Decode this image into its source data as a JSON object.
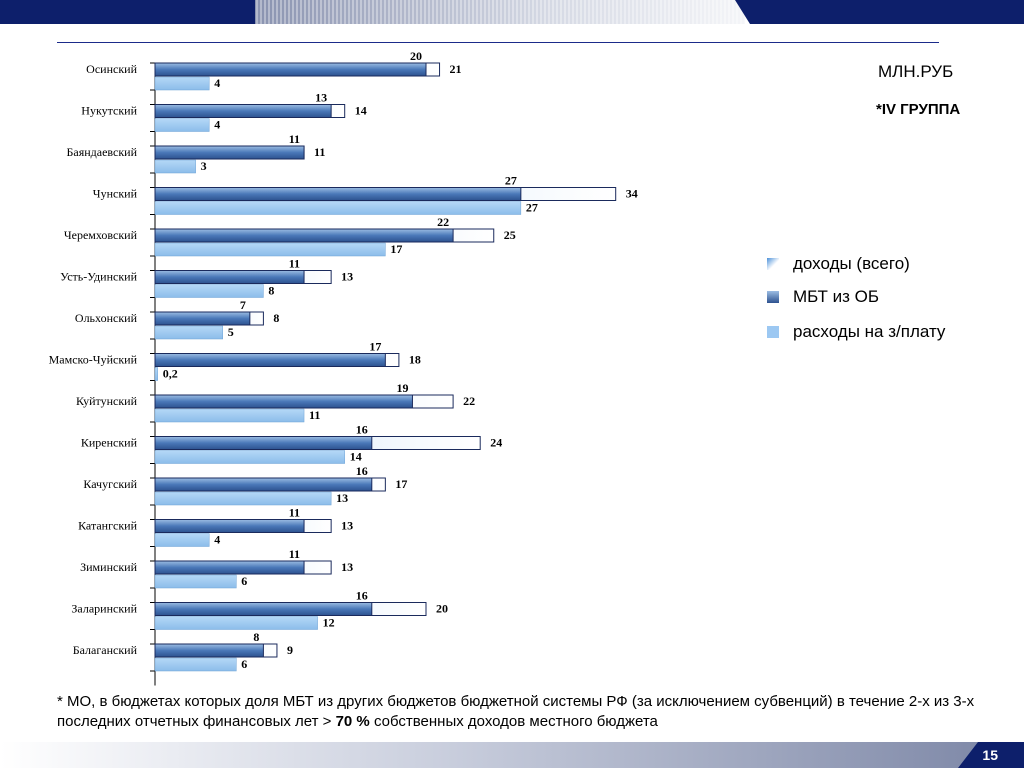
{
  "header": {
    "unit_label": "МЛН.РУБ",
    "group_label": "*IV ГРУППА"
  },
  "legend": [
    {
      "key": "income_total",
      "label": "доходы (всего)"
    },
    {
      "key": "mbt_ob",
      "label": "МБТ из ОБ"
    },
    {
      "key": "salary",
      "label": "расходы на з/плату"
    }
  ],
  "footnote": {
    "before": "* МО, в бюджетах которых доля МБТ из других бюджетов бюджетной системы РФ (за исключением субвенций) в течение 2-х из 3-х последних отчетных финансовых лет > ",
    "bold": "70 %",
    "after": " собственных доходов местного бюджета"
  },
  "page_number": "15",
  "colors": {
    "accent_navy": "#0d1f6b",
    "income_fill": "#ffffff",
    "mbt_fill": "#4a78b8",
    "salary_fill": "#9cc8f2"
  },
  "chart_data": {
    "type": "bar",
    "orientation": "horizontal",
    "categories": [
      "Осинский",
      "Нукутский",
      "Баяндаевский",
      "Чунский",
      "Черемховский",
      "Усть-Удинский",
      "Ольхонский",
      "Мамско-Чуйский",
      "Куйтунский",
      "Киренский",
      "Качугский",
      "Катангский",
      "Зиминский",
      "Заларинский",
      "Балаганский"
    ],
    "series": [
      {
        "name": "доходы (всего)",
        "values": [
          21,
          14,
          11,
          34,
          25,
          13,
          8,
          18,
          22,
          24,
          17,
          13,
          13,
          20,
          9
        ],
        "labels": [
          "21",
          "14",
          "11",
          "34",
          "25",
          "13",
          "8",
          "18",
          "22",
          "24",
          "17",
          "13",
          "13",
          "20",
          "9"
        ]
      },
      {
        "name": "МБТ из ОБ",
        "values": [
          20,
          13,
          11,
          27,
          22,
          11,
          7,
          17,
          19,
          16,
          16,
          11,
          11,
          16,
          8
        ],
        "labels": [
          "20",
          "13",
          "11",
          "27",
          "22",
          "11",
          "7",
          "17",
          "19",
          "16",
          "16",
          "11",
          "11",
          "16",
          "8"
        ]
      },
      {
        "name": "расходы на з/плату",
        "values": [
          4,
          4,
          3,
          27,
          17,
          8,
          5,
          0.2,
          11,
          14,
          13,
          4,
          6,
          12,
          6
        ],
        "labels": [
          "4",
          "4",
          "3",
          "27",
          "17",
          "8",
          "5",
          "0,2",
          "11",
          "14",
          "13",
          "4",
          "6",
          "12",
          "6"
        ]
      }
    ],
    "xlim": [
      0,
      40
    ],
    "grid": false,
    "legend_position": "right"
  }
}
